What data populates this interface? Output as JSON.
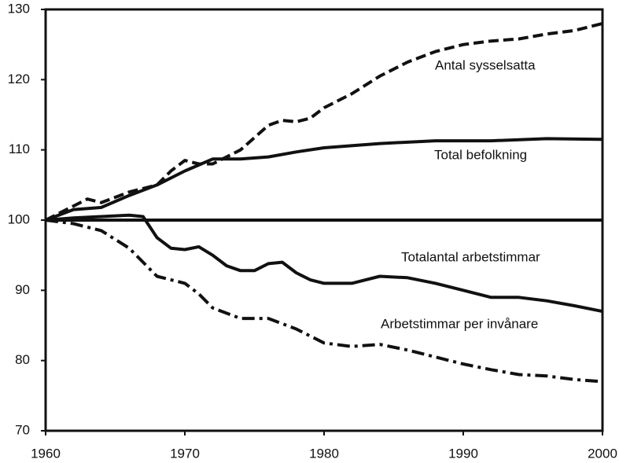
{
  "chart_data": {
    "type": "line",
    "xlim": [
      1960,
      2000
    ],
    "xticks": [
      1960,
      1970,
      1980,
      1990,
      2000
    ],
    "ylim": [
      70,
      130
    ],
    "yticks": [
      70,
      80,
      90,
      100,
      110,
      120,
      130
    ],
    "hline": 100,
    "series": [
      {
        "name": "Antal sysselsatta",
        "color": "#111111",
        "style": "dashed",
        "x": [
          1960,
          1962,
          1963,
          1964,
          1966,
          1968,
          1969,
          1970,
          1971,
          1972,
          1974,
          1976,
          1977,
          1978,
          1979,
          1980,
          1982,
          1984,
          1986,
          1988,
          1990,
          1992,
          1994,
          1996,
          1998,
          2000
        ],
        "values": [
          100,
          102,
          103,
          102.5,
          104,
          105,
          107,
          108.5,
          108,
          108,
          110,
          113.5,
          114.2,
          114,
          114.5,
          116,
          118,
          120.5,
          122.5,
          124,
          125,
          125.5,
          125.8,
          126.5,
          127,
          128
        ]
      },
      {
        "name": "Total befolkning",
        "color": "#111111",
        "style": "solid",
        "x": [
          1960,
          1962,
          1964,
          1966,
          1968,
          1970,
          1972,
          1974,
          1976,
          1978,
          1980,
          1984,
          1988,
          1992,
          1996,
          2000
        ],
        "values": [
          100,
          101.5,
          101.8,
          103.5,
          105,
          107,
          108.7,
          108.7,
          109,
          109.7,
          110.3,
          110.9,
          111.3,
          111.3,
          111.6,
          111.5
        ]
      },
      {
        "name": "Totalantal arbetstimmar",
        "color": "#111111",
        "style": "solid",
        "x": [
          1960,
          1962,
          1964,
          1966,
          1967,
          1968,
          1969,
          1970,
          1971,
          1972,
          1973,
          1974,
          1975,
          1976,
          1977,
          1978,
          1979,
          1980,
          1982,
          1984,
          1986,
          1988,
          1990,
          1992,
          1994,
          1996,
          1998,
          2000
        ],
        "values": [
          100,
          100.3,
          100.5,
          100.7,
          100.5,
          97.5,
          96,
          95.8,
          96.2,
          95,
          93.5,
          92.8,
          92.8,
          93.8,
          94,
          92.5,
          91.5,
          91,
          91,
          92,
          91.8,
          91,
          90,
          89,
          89,
          88.5,
          87.8,
          87
        ]
      },
      {
        "name": "Arbetstimmar per invånare",
        "color": "#111111",
        "style": "dashdot",
        "x": [
          1960,
          1962,
          1964,
          1966,
          1968,
          1970,
          1971,
          1972,
          1974,
          1976,
          1978,
          1980,
          1982,
          1984,
          1986,
          1988,
          1990,
          1992,
          1994,
          1996,
          1998,
          2000
        ],
        "values": [
          100,
          99.5,
          98.5,
          96,
          92,
          91,
          89.5,
          87.5,
          86,
          86,
          84.5,
          82.5,
          82,
          82.3,
          81.5,
          80.5,
          79.5,
          78.7,
          78,
          77.8,
          77.3,
          77
        ]
      }
    ]
  }
}
